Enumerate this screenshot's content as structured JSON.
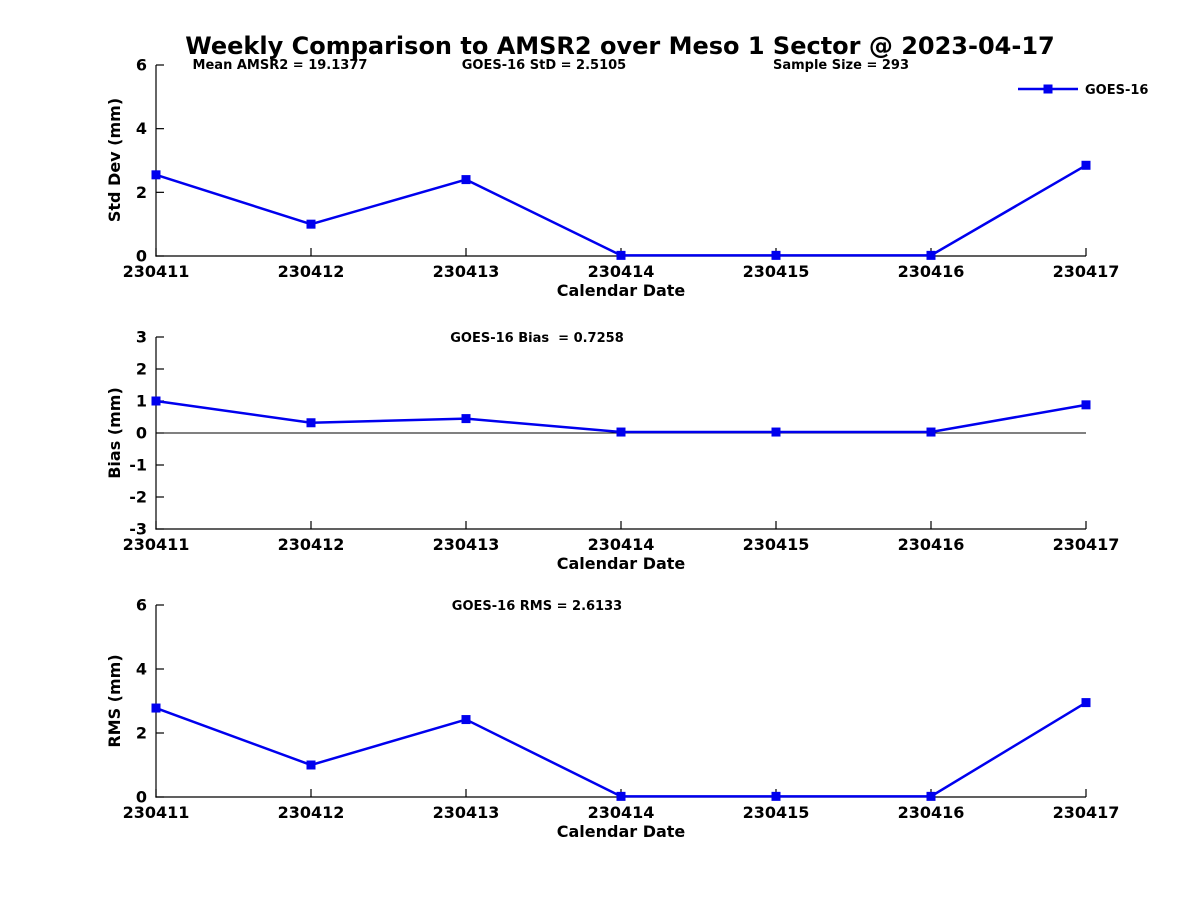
{
  "figure": {
    "title": "Weekly Comparison to AMSR2 over Meso 1 Sector @ 2023-04-17",
    "legend": {
      "label": "GOES-16"
    },
    "colors": {
      "series": "#0000EE",
      "axis": "#000000",
      "text": "#000000",
      "background": "#ffffff"
    }
  },
  "chart_data": [
    {
      "type": "line",
      "subplot": "std-dev",
      "categories": [
        "230411",
        "230412",
        "230413",
        "230414",
        "230415",
        "230416",
        "230417"
      ],
      "series": [
        {
          "name": "GOES-16",
          "color": "#0000EE",
          "marker": "square",
          "values": [
            2.55,
            1.0,
            2.4,
            0.02,
            0.02,
            0.02,
            2.85
          ]
        }
      ],
      "xlabel": "Calendar Date",
      "ylabel": "Std Dev (mm)",
      "ylim": [
        0,
        6
      ],
      "yticks": [
        0,
        2,
        4,
        6
      ],
      "annotations": [
        "Mean AMSR2 = 19.1377",
        "GOES-16 StD = 2.5105",
        "Sample Size = 293"
      ],
      "zero_line": false,
      "grid": false,
      "legend_position": "upper right"
    },
    {
      "type": "line",
      "subplot": "bias",
      "categories": [
        "230411",
        "230412",
        "230413",
        "230414",
        "230415",
        "230416",
        "230417"
      ],
      "series": [
        {
          "name": "GOES-16",
          "color": "#0000EE",
          "marker": "square",
          "values": [
            1.0,
            0.32,
            0.45,
            0.03,
            0.03,
            0.03,
            0.88
          ]
        }
      ],
      "xlabel": "Calendar Date",
      "ylabel": "Bias (mm)",
      "ylim": [
        -3,
        3
      ],
      "yticks": [
        -3,
        -2,
        -1,
        0,
        1,
        2,
        3
      ],
      "annotations": [
        "GOES-16 Bias  = 0.7258"
      ],
      "zero_line": true,
      "grid": false
    },
    {
      "type": "line",
      "subplot": "rms",
      "categories": [
        "230411",
        "230412",
        "230413",
        "230414",
        "230415",
        "230416",
        "230417"
      ],
      "series": [
        {
          "name": "GOES-16",
          "color": "#0000EE",
          "marker": "square",
          "values": [
            2.78,
            1.0,
            2.42,
            0.02,
            0.02,
            0.02,
            2.95
          ]
        }
      ],
      "xlabel": "Calendar Date",
      "ylabel": "RMS (mm)",
      "ylim": [
        0,
        6
      ],
      "yticks": [
        0,
        2,
        4,
        6
      ],
      "annotations": [
        "GOES-16 RMS = 2.6133"
      ],
      "zero_line": false,
      "grid": false
    }
  ]
}
